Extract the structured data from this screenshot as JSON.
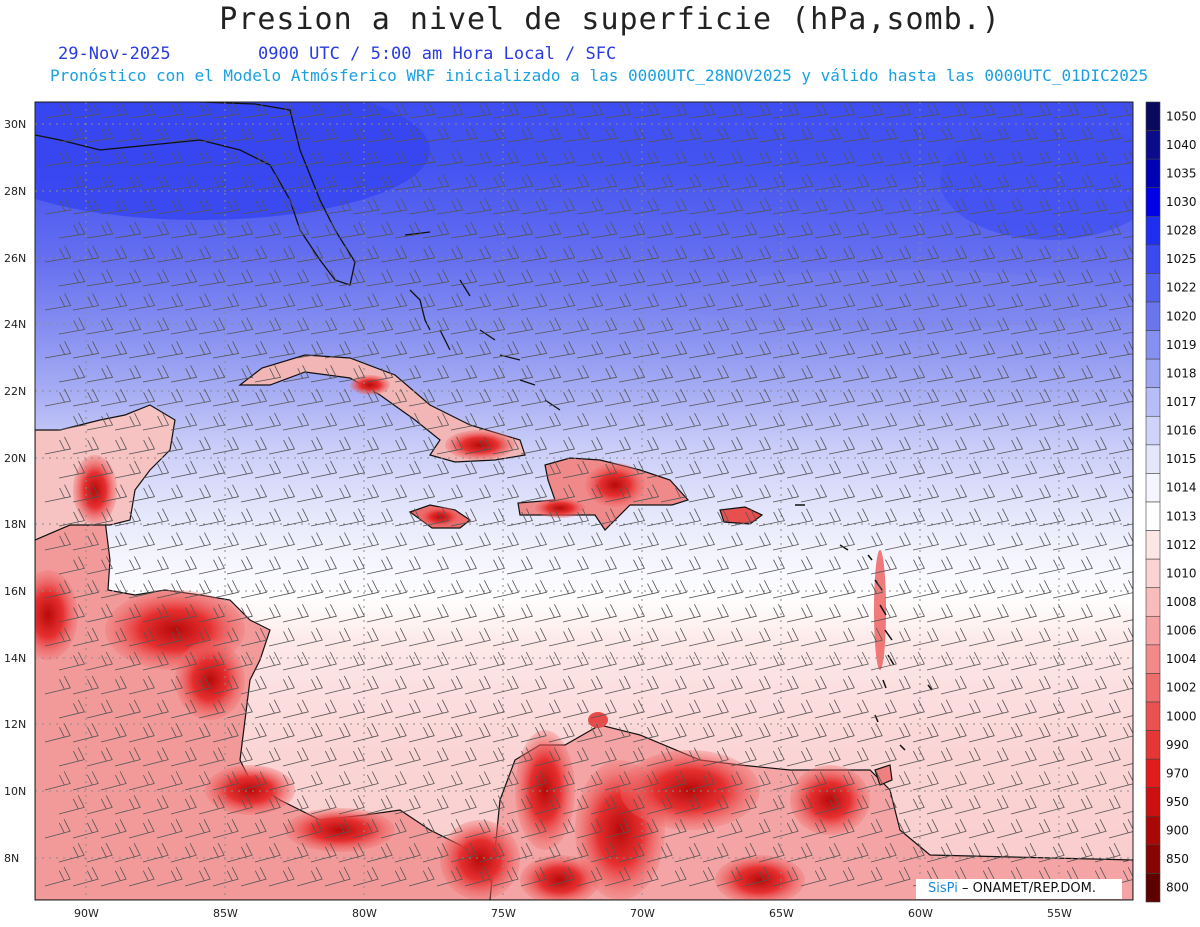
{
  "header": {
    "title": "Presion a nivel de superficie (hPa,somb.)",
    "date": "29-Nov-2025",
    "time_label": "0900 UTC / 5:00 am Hora Local / SFC",
    "forecast_note": "Pronóstico con el Modelo Atmósferico WRF inicializado a las 0000UTC_28NOV2025 y válido hasta las  0000UTC_01DIC2025"
  },
  "axes": {
    "lat_labels": [
      "30N",
      "28N",
      "26N",
      "24N",
      "22N",
      "20N",
      "18N",
      "16N",
      "14N",
      "12N",
      "10N",
      "8N"
    ],
    "lon_labels": [
      "90W",
      "85W",
      "80W",
      "75W",
      "70W",
      "65W",
      "60W",
      "55W"
    ]
  },
  "colorbar": {
    "levels": [
      "1050",
      "1040",
      "1035",
      "1030",
      "1028",
      "1025",
      "1022",
      "1020",
      "1019",
      "1018",
      "1017",
      "1016",
      "1015",
      "1014",
      "1013",
      "1012",
      "1010",
      "1008",
      "1006",
      "1004",
      "1002",
      "1000",
      "990",
      "970",
      "950",
      "900",
      "850",
      "800"
    ],
    "colors": [
      "#0a0a5c",
      "#0c0c8a",
      "#0000b4",
      "#0000e6",
      "#1f2ff0",
      "#3a49f0",
      "#5260ee",
      "#6a76ee",
      "#8590f0",
      "#9ea6f3",
      "#b7bdf6",
      "#cfd3f9",
      "#e4e6fb",
      "#f4f5fd",
      "#ffffff",
      "#fde6e6",
      "#fbd3d3",
      "#f8bcbc",
      "#f5a3a3",
      "#f28a8a",
      "#ee6e6e",
      "#ea5252",
      "#e63636",
      "#e01c1c",
      "#cc0f0f",
      "#aa0707",
      "#880303",
      "#5e0000"
    ]
  },
  "credit": {
    "brand": "SisPi",
    "org": " – ONAMET/REP.DOM."
  }
}
